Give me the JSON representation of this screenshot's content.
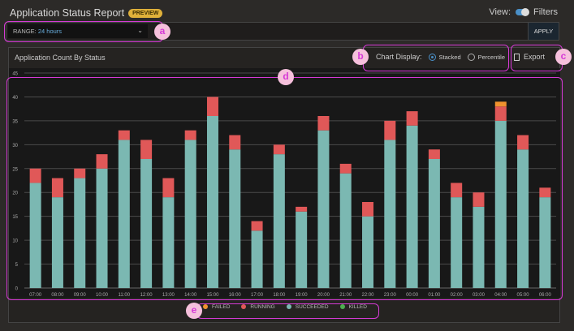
{
  "header": {
    "title": "Application Status Report",
    "badge": "PREVIEW",
    "view_label": "View:",
    "filters_label": "Filters"
  },
  "filter": {
    "range_label": "RANGE:",
    "range_value": "24 hours",
    "apply": "APPLY"
  },
  "panel": {
    "title": "Application Count By Status",
    "display_label": "Chart Display:",
    "opt_stacked": "Stacked",
    "opt_percentile": "Percentile",
    "selected": "Stacked",
    "export": "Export"
  },
  "annotations": [
    "a",
    "b",
    "c",
    "d",
    "e"
  ],
  "colors": {
    "failed": "#f0922e",
    "running": "#e05858",
    "succeeded": "#7bb8b2",
    "killed": "#4caf50"
  },
  "chart_data": {
    "type": "bar",
    "stacked": true,
    "categories": [
      "07:00",
      "08:00",
      "09:00",
      "10:00",
      "11:00",
      "12:00",
      "13:00",
      "14:00",
      "15:00",
      "16:00",
      "17:00",
      "18:00",
      "19:00",
      "20:00",
      "21:00",
      "22:00",
      "23:00",
      "00:00",
      "01:00",
      "02:00",
      "03:00",
      "04:00",
      "05:00",
      "06:00"
    ],
    "series": [
      {
        "name": "SUCCEEDED",
        "values": [
          22,
          19,
          23,
          25,
          31,
          27,
          19,
          31,
          36,
          29,
          12,
          28,
          16,
          33,
          24,
          15,
          31,
          34,
          27,
          19,
          17,
          35,
          29,
          19
        ]
      },
      {
        "name": "RUNNING",
        "values": [
          3,
          4,
          2,
          3,
          2,
          4,
          4,
          2,
          4,
          3,
          2,
          2,
          1,
          3,
          2,
          3,
          4,
          3,
          2,
          3,
          3,
          3,
          3,
          2
        ]
      },
      {
        "name": "FAILED",
        "values": [
          0,
          0,
          0,
          0,
          0,
          0,
          0,
          0,
          0,
          0,
          0,
          0,
          0,
          0,
          0,
          0,
          0,
          0,
          0,
          0,
          0,
          1,
          0,
          0
        ]
      },
      {
        "name": "KILLED",
        "values": [
          0,
          0,
          0,
          0,
          0,
          0,
          0,
          0,
          0,
          0,
          0,
          0,
          0,
          0,
          0,
          0,
          0,
          0,
          0,
          0,
          0,
          0,
          0,
          0
        ]
      }
    ],
    "yticks": [
      0,
      5,
      10,
      15,
      20,
      25,
      30,
      35,
      40,
      45
    ],
    "ylim": [
      0,
      45
    ],
    "grid": true,
    "legend": "bottom"
  }
}
